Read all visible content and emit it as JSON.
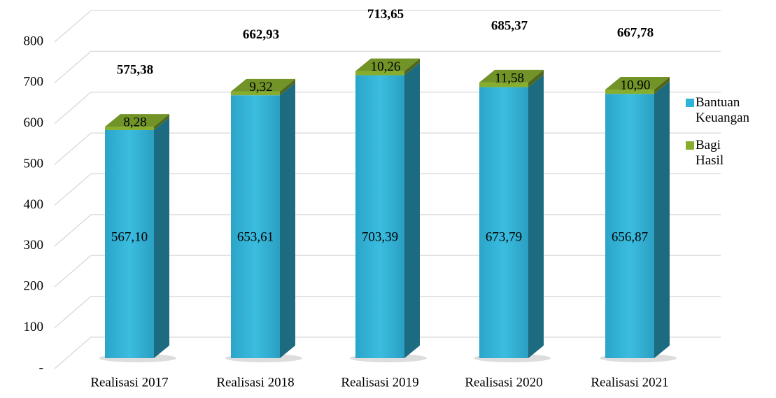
{
  "chart_data": {
    "type": "bar3d_stacked",
    "categories": [
      "Realisasi 2017",
      "Realisasi 2018",
      "Realisasi 2019",
      "Realisasi 2020",
      "Realisasi 2021"
    ],
    "series": [
      {
        "name": "Bantuan Keuangan",
        "color": "#2fb3d6",
        "values": [
          567.1,
          653.61,
          703.39,
          673.79,
          656.87
        ],
        "value_labels": [
          "567,10",
          "653,61",
          "703,39",
          "673,79",
          "656,87"
        ]
      },
      {
        "name": "Bagi Hasil",
        "color": "#86ad2e",
        "values": [
          8.28,
          9.32,
          10.26,
          11.58,
          10.9
        ],
        "value_labels": [
          "8,28",
          "9,32",
          "10,26",
          "11,58",
          "10,90"
        ]
      }
    ],
    "totals": [
      575.38,
      662.93,
      713.65,
      685.37,
      667.78
    ],
    "total_labels": [
      "575,38",
      "662,93",
      "713,65",
      "685,37",
      "667,78"
    ],
    "ylim": [
      0,
      800
    ],
    "yticks": [
      {
        "value": 0,
        "label": "-"
      },
      100,
      200,
      300,
      400,
      500,
      600,
      700,
      800
    ],
    "grid": true,
    "legend": "right"
  }
}
